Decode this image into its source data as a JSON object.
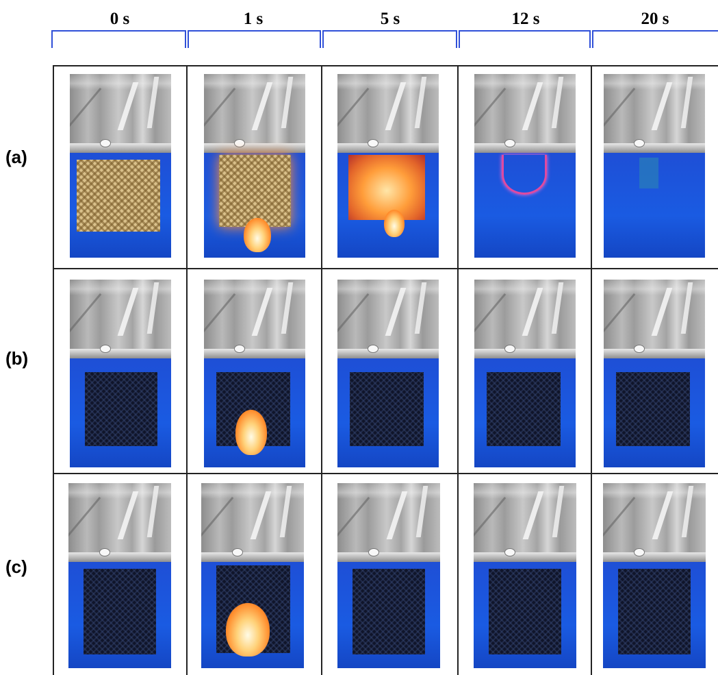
{
  "times": [
    "0 s",
    "1 s",
    "5 s",
    "12 s",
    "20 s"
  ],
  "rows": [
    "(a)",
    "(b)",
    "(c)"
  ]
}
